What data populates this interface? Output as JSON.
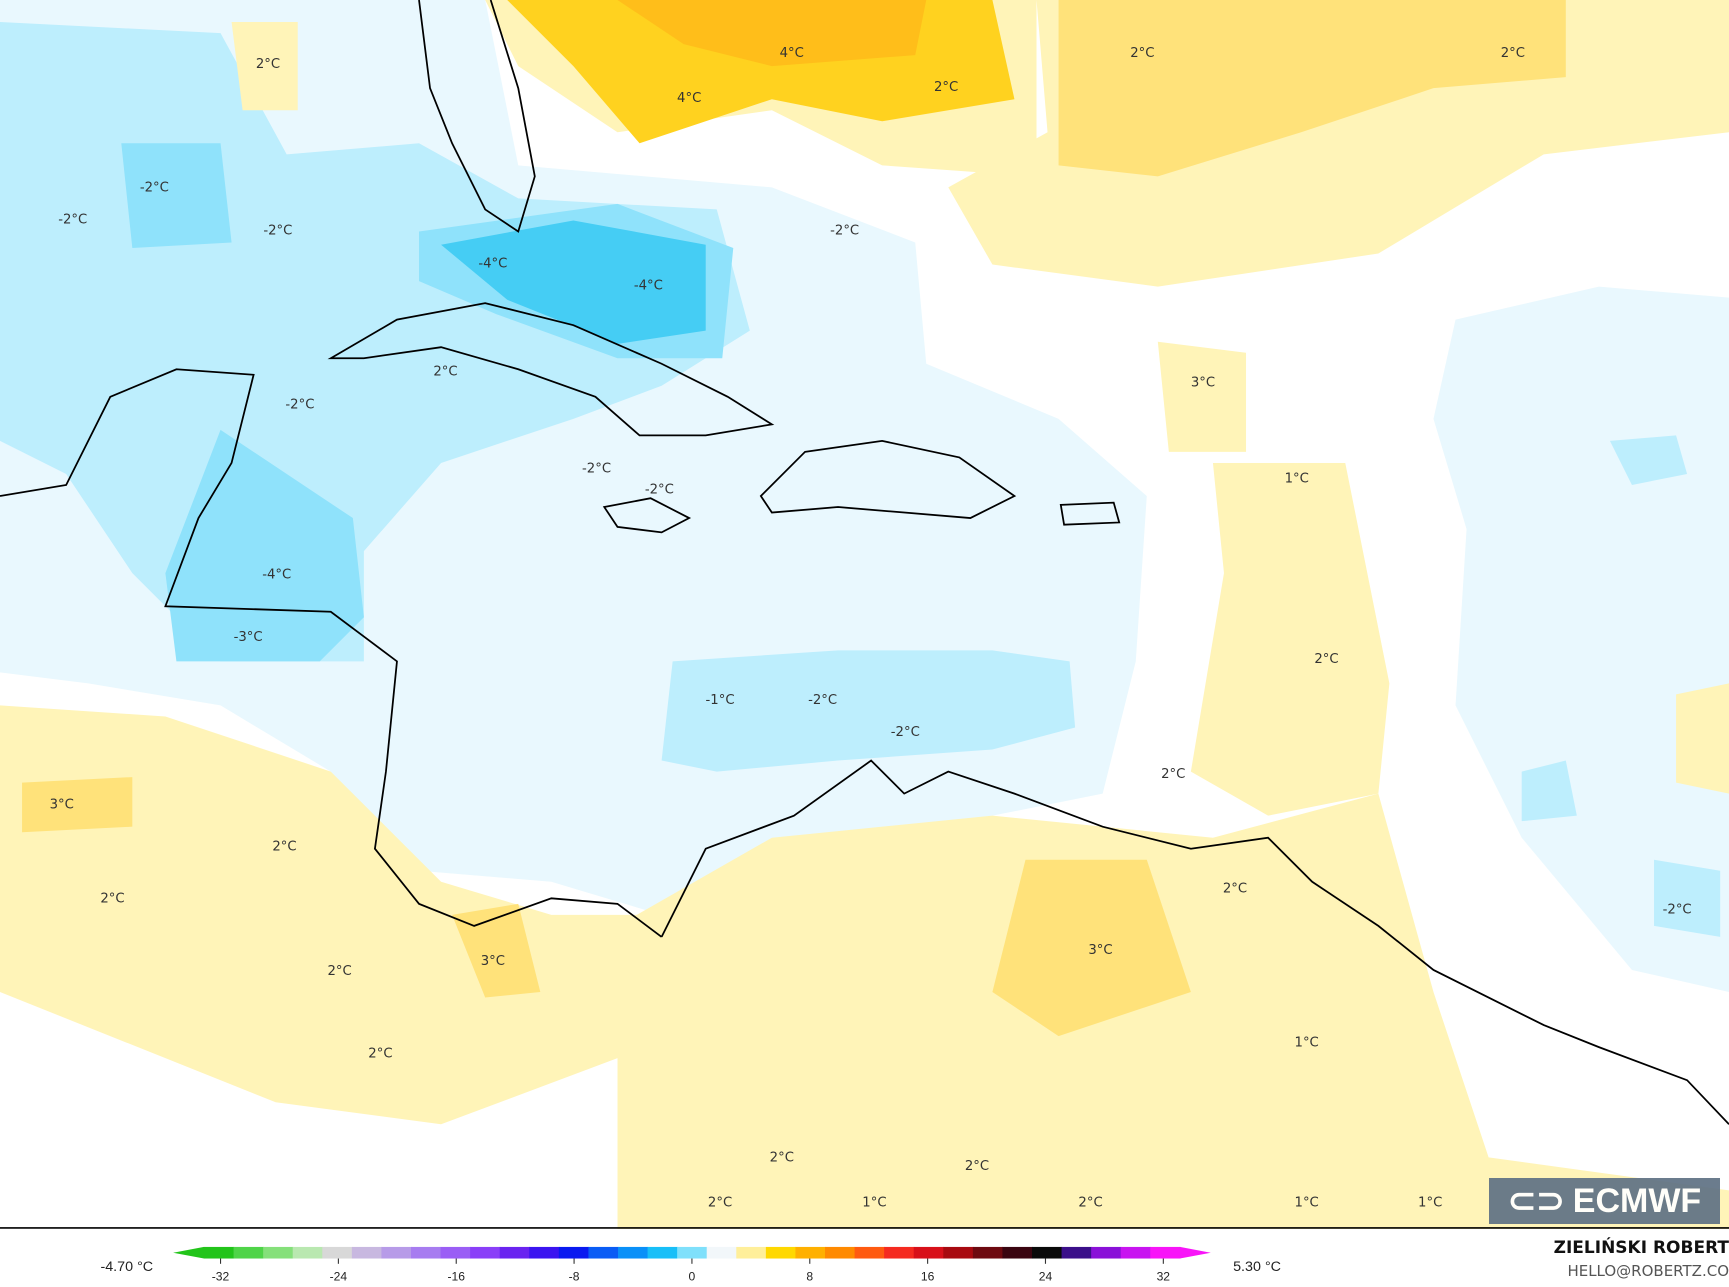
{
  "map": {
    "type": "temperature anomaly map",
    "region": "Caribbean",
    "contour_labels": [
      "2°C",
      "4°C",
      "4°C",
      "2°C",
      "2°C",
      "2°C",
      "-2°C",
      "-2°C",
      "-2°C",
      "-4°C",
      "-4°C",
      "-2°C",
      "2°C",
      "-2°C",
      "3°C",
      "-2°C",
      "-2°C",
      "1°C",
      "-4°C",
      "-3°C",
      "2°C",
      "-1°C",
      "-2°C",
      "-2°C",
      "2°C",
      "3°C",
      "2°C",
      "2°C",
      "-2°C",
      "2°C",
      "3°C",
      "3°C",
      "2°C",
      "1°C",
      "2°C",
      "2°C",
      "2°C",
      "1°C",
      "2°C",
      "1°C",
      "2°C",
      "1°C"
    ],
    "fill_colors": {
      "warm_light": "#fff4b8",
      "warm_mid": "#ffe27a",
      "warm_strong": "#ffd21f",
      "warm_deep": "#ffbe1a",
      "cold_light": "#e9f8fe",
      "cold_mid": "#bdeefd",
      "cold_strong": "#8fe2fb",
      "cold_deep": "#45cdf4"
    }
  },
  "colorbar": {
    "min_label": "-4.70 °C",
    "max_label": "5.30 °C",
    "ticks": [
      "-32",
      "-24",
      "-16",
      "-8",
      "0",
      "8",
      "16",
      "24",
      "32"
    ],
    "colors": [
      "#22c41a",
      "#4fd448",
      "#85e07a",
      "#b9e8b0",
      "#d8d8d8",
      "#c8b8e0",
      "#b79be8",
      "#a77cf0",
      "#9a5ef5",
      "#8a3ff8",
      "#6a24f0",
      "#3b14f0",
      "#0a1af0",
      "#0a5cf5",
      "#0a90f8",
      "#18bff8",
      "#7fe0fb",
      "#f2f7fa",
      "#ffef9a",
      "#ffd800",
      "#ffb000",
      "#ff8a00",
      "#ff5a10",
      "#f52a20",
      "#d8101a",
      "#a80a10",
      "#6e0a10",
      "#3a0510",
      "#0a0a0a",
      "#3b0f8a",
      "#8a10d8",
      "#c814f0",
      "#f814f8"
    ]
  },
  "logo": {
    "text": "ECMWF"
  },
  "credits": {
    "author": "ZIELIŃSKI ROBERT",
    "email": "HELLO@ROBERTZ.CO"
  }
}
